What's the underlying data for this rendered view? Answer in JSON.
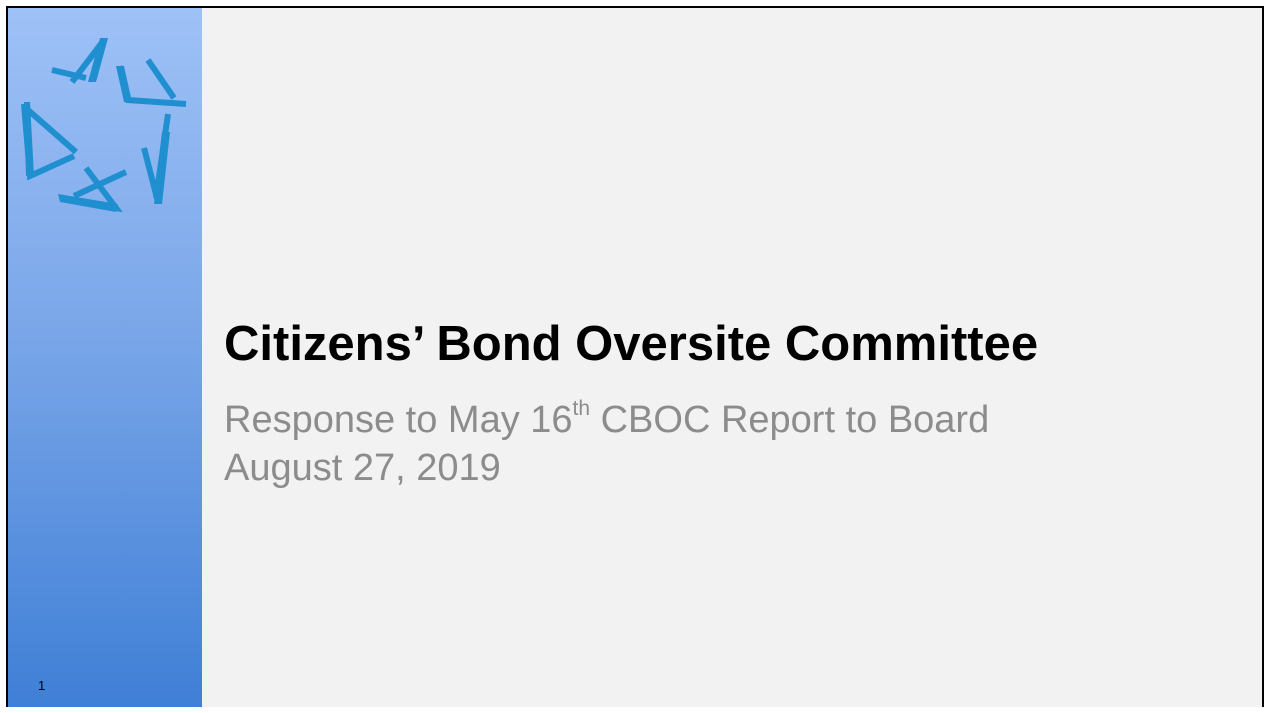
{
  "slide": {
    "number": "1",
    "title": "Citizens’ Bond Oversite Committee",
    "subtitle": {
      "line1_before": "Response to May 16",
      "line1_sup": "th",
      "line1_after": " CBOC Report to Board",
      "line2": "August 27, 2019"
    }
  },
  "colors": {
    "band_top": "#9ec1f7",
    "band_bottom": "#3f7fd6",
    "logo": "#1f8fd0",
    "title": "#000000",
    "subtitle": "#8c8c8c",
    "background": "#f2f2f2"
  },
  "logo": {
    "icon": "star-of-a-letters-logo"
  }
}
